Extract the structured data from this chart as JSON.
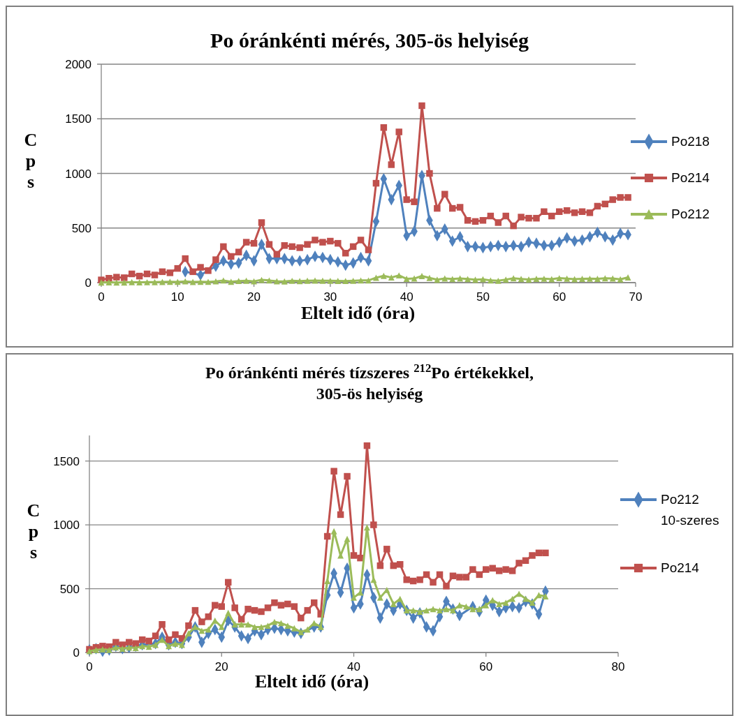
{
  "chart_data": [
    {
      "type": "line",
      "title": "Po óránkénti  mérés, 305-ös helyiség",
      "xlabel": "Eltelt idő (óra)",
      "ylabel": "Cps",
      "xlim": [
        0,
        70
      ],
      "xticks": [
        0,
        10,
        20,
        30,
        40,
        50,
        60,
        70
      ],
      "ylim": [
        0,
        2000
      ],
      "yticks": [
        0,
        500,
        1000,
        1500,
        2000
      ],
      "grid": "y",
      "legend": "right",
      "x": [
        0,
        1,
        2,
        3,
        4,
        5,
        6,
        7,
        8,
        9,
        10,
        11,
        12,
        13,
        14,
        15,
        16,
        17,
        18,
        19,
        20,
        21,
        22,
        23,
        24,
        25,
        26,
        27,
        28,
        29,
        30,
        31,
        32,
        33,
        34,
        35,
        36,
        37,
        38,
        39,
        40,
        41,
        42,
        43,
        44,
        45,
        46,
        47,
        48,
        49,
        50,
        51,
        52,
        53,
        54,
        55,
        56,
        57,
        58,
        59,
        60,
        61,
        62,
        63,
        64,
        65,
        66,
        67,
        68,
        69
      ],
      "series": [
        {
          "name": "Po218",
          "color": "#4f81bd",
          "marker": "diamond",
          "values": [
            null,
            null,
            null,
            null,
            null,
            null,
            null,
            null,
            null,
            null,
            null,
            100,
            null,
            70,
            null,
            150,
            200,
            170,
            180,
            250,
            200,
            350,
            220,
            220,
            220,
            200,
            200,
            210,
            240,
            230,
            210,
            190,
            160,
            180,
            230,
            200,
            560,
            950,
            760,
            890,
            430,
            470,
            980,
            570,
            430,
            490,
            380,
            420,
            330,
            330,
            320,
            330,
            340,
            330,
            340,
            330,
            370,
            360,
            340,
            340,
            370,
            410,
            380,
            390,
            420,
            460,
            420,
            390,
            450,
            440
          ]
        },
        {
          "name": "Po214",
          "color": "#c0504d",
          "marker": "square",
          "values": [
            25,
            40,
            50,
            45,
            80,
            60,
            80,
            70,
            100,
            90,
            130,
            220,
            100,
            140,
            110,
            210,
            330,
            240,
            280,
            370,
            360,
            550,
            350,
            260,
            340,
            330,
            320,
            350,
            390,
            370,
            380,
            360,
            270,
            330,
            390,
            300,
            910,
            1420,
            1080,
            1380,
            760,
            740,
            1620,
            1000,
            680,
            810,
            680,
            690,
            570,
            560,
            570,
            610,
            550,
            610,
            520,
            600,
            590,
            590,
            650,
            610,
            650,
            660,
            640,
            650,
            640,
            700,
            720,
            760,
            780,
            780
          ]
        },
        {
          "name": "Po212",
          "color": "#9bbb59",
          "marker": "triangle",
          "values": [
            2,
            3,
            1,
            2,
            5,
            3,
            4,
            5,
            6,
            8,
            7,
            12,
            6,
            8,
            7,
            12,
            20,
            8,
            15,
            18,
            12,
            25,
            20,
            13,
            11,
            17,
            14,
            18,
            19,
            18,
            17,
            16,
            15,
            17,
            20,
            20,
            45,
            62,
            47,
            66,
            35,
            38,
            61,
            43,
            27,
            38,
            33,
            38,
            33,
            27,
            31,
            20,
            17,
            28,
            40,
            34,
            29,
            35,
            36,
            32,
            41,
            37,
            32,
            35,
            36,
            35,
            40,
            38,
            30,
            48
          ]
        }
      ]
    },
    {
      "type": "line",
      "title": "Po óránkénti mérés tízszeres $^{212}$Po értékekkel, 305-ös helyiség",
      "xlabel": "Eltelt idő (óra)",
      "ylabel": "Cps",
      "xlim": [
        0,
        80
      ],
      "xticks": [
        0,
        20,
        40,
        60,
        80
      ],
      "ylim": [
        0,
        1700
      ],
      "yticks": [
        0,
        500,
        1000,
        1500
      ],
      "grid": "y",
      "legend": "right",
      "x": [
        0,
        1,
        2,
        3,
        4,
        5,
        6,
        7,
        8,
        9,
        10,
        11,
        12,
        13,
        14,
        15,
        16,
        17,
        18,
        19,
        20,
        21,
        22,
        23,
        24,
        25,
        26,
        27,
        28,
        29,
        30,
        31,
        32,
        33,
        34,
        35,
        36,
        37,
        38,
        39,
        40,
        41,
        42,
        43,
        44,
        45,
        46,
        47,
        48,
        49,
        50,
        51,
        52,
        53,
        54,
        55,
        56,
        57,
        58,
        59,
        60,
        61,
        62,
        63,
        64,
        65,
        66,
        67,
        68,
        69
      ],
      "series": [
        {
          "name": "Po212 10-szeres",
          "color": "#4f81bd",
          "marker": "diamond",
          "values": [
            20,
            30,
            10,
            20,
            50,
            30,
            40,
            50,
            60,
            null,
            70,
            120,
            60,
            80,
            70,
            120,
            200,
            80,
            150,
            180,
            120,
            250,
            200,
            130,
            110,
            170,
            140,
            180,
            190,
            180,
            170,
            160,
            150,
            null,
            200,
            200,
            450,
            620,
            470,
            660,
            350,
            380,
            610,
            430,
            270,
            380,
            330,
            380,
            330,
            270,
            310,
            200,
            170,
            280,
            400,
            340,
            290,
            null,
            360,
            320,
            410,
            370,
            320,
            350,
            360,
            350,
            400,
            380,
            300,
            480
          ]
        },
        {
          "name": "Po214",
          "color": "#c0504d",
          "marker": "square",
          "values": [
            25,
            40,
            50,
            45,
            80,
            60,
            80,
            70,
            100,
            90,
            130,
            220,
            100,
            140,
            110,
            210,
            330,
            240,
            280,
            370,
            360,
            550,
            350,
            260,
            340,
            330,
            320,
            350,
            390,
            370,
            380,
            360,
            270,
            330,
            390,
            300,
            910,
            1420,
            1080,
            1380,
            760,
            740,
            1620,
            1000,
            680,
            810,
            680,
            690,
            570,
            560,
            570,
            610,
            550,
            610,
            520,
            600,
            590,
            590,
            650,
            610,
            650,
            660,
            640,
            650,
            640,
            700,
            720,
            760,
            780,
            780
          ]
        },
        {
          "color": "#9bbb59",
          "marker": "triangle",
          "values": [
            10,
            20,
            25,
            20,
            40,
            30,
            40,
            35,
            50,
            45,
            60,
            100,
            50,
            70,
            60,
            150,
            200,
            170,
            180,
            250,
            200,
            310,
            220,
            220,
            220,
            200,
            200,
            210,
            240,
            230,
            210,
            190,
            160,
            180,
            230,
            200,
            560,
            950,
            760,
            890,
            430,
            470,
            980,
            570,
            430,
            490,
            380,
            420,
            330,
            330,
            320,
            330,
            340,
            330,
            340,
            330,
            370,
            360,
            340,
            340,
            370,
            410,
            380,
            390,
            420,
            460,
            420,
            390,
            450,
            440
          ]
        }
      ]
    }
  ]
}
